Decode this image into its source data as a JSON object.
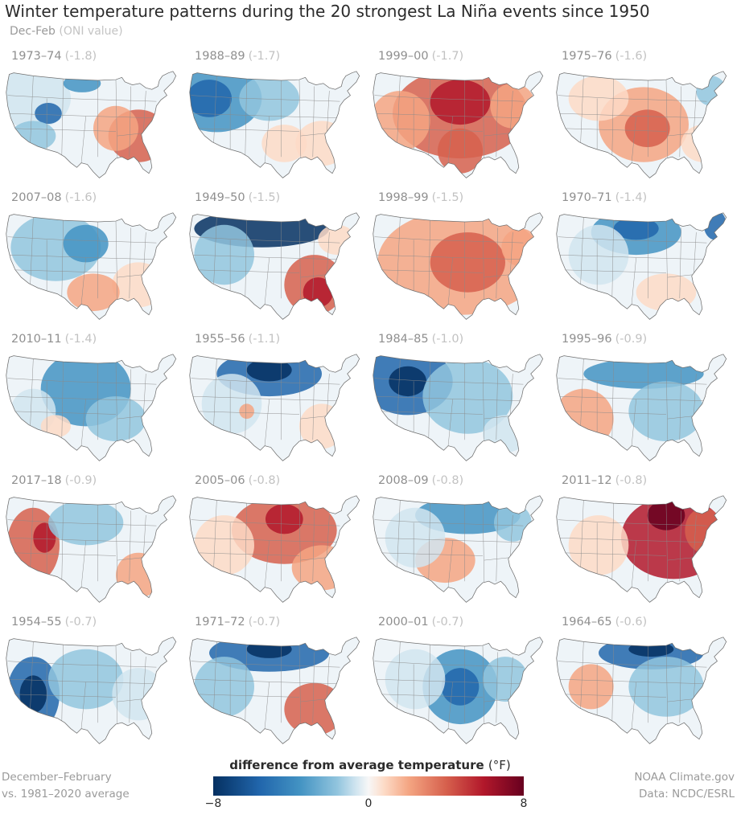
{
  "title": "Winter temperature patterns during the 20 strongest La Niña events since 1950",
  "subtitle": {
    "main": "Dec-Feb",
    "note": "(ONI value)"
  },
  "panels": [
    {
      "years": "1973–74",
      "oni": "(-1.8)",
      "pattern": "1973"
    },
    {
      "years": "1988–89",
      "oni": "(-1.7)",
      "pattern": "1988"
    },
    {
      "years": "1999–00",
      "oni": "(-1.7)",
      "pattern": "1999"
    },
    {
      "years": "1975–76",
      "oni": "(-1.6)",
      "pattern": "1975"
    },
    {
      "years": "2007–08",
      "oni": "(-1.6)",
      "pattern": "2007"
    },
    {
      "years": "1949–50",
      "oni": "(-1.5)",
      "pattern": "1949"
    },
    {
      "years": "1998–99",
      "oni": "(-1.5)",
      "pattern": "1998"
    },
    {
      "years": "1970–71",
      "oni": "(-1.4)",
      "pattern": "1970"
    },
    {
      "years": "2010–11",
      "oni": "(-1.4)",
      "pattern": "2010"
    },
    {
      "years": "1955–56",
      "oni": "(-1.1)",
      "pattern": "1955"
    },
    {
      "years": "1984–85",
      "oni": "(-1.0)",
      "pattern": "1984"
    },
    {
      "years": "1995–96",
      "oni": "(-0.9)",
      "pattern": "1995"
    },
    {
      "years": "2017–18",
      "oni": "(-0.9)",
      "pattern": "2017"
    },
    {
      "years": "2005–06",
      "oni": "(-0.8)",
      "pattern": "2005"
    },
    {
      "years": "2008–09",
      "oni": "(-0.8)",
      "pattern": "2008"
    },
    {
      "years": "2011–12",
      "oni": "(-0.8)",
      "pattern": "2011"
    },
    {
      "years": "1954–55",
      "oni": "(-0.7)",
      "pattern": "1954"
    },
    {
      "years": "1971–72",
      "oni": "(-0.7)",
      "pattern": "1971"
    },
    {
      "years": "2000–01",
      "oni": "(-0.7)",
      "pattern": "2000"
    },
    {
      "years": "1964–65",
      "oni": "(-0.6)",
      "pattern": "1964"
    }
  ],
  "legend": {
    "title": "difference from average temperature",
    "unit": "(°F)",
    "ticks": [
      "−8",
      "0",
      "8"
    ],
    "min": -8,
    "max": 8,
    "colors": [
      "#053061",
      "#2166ac",
      "#4393c3",
      "#92c5de",
      "#d1e5f0",
      "#f7f7f7",
      "#fddbc7",
      "#f4a582",
      "#d6604d",
      "#b2182b",
      "#67001f"
    ]
  },
  "footer_left": {
    "line1": "December–February",
    "line2": "vs. 1981–2020 average"
  },
  "footer_right": {
    "line1": "NOAA Climate.gov",
    "line2": "Data: NCDC/ESRL"
  }
}
